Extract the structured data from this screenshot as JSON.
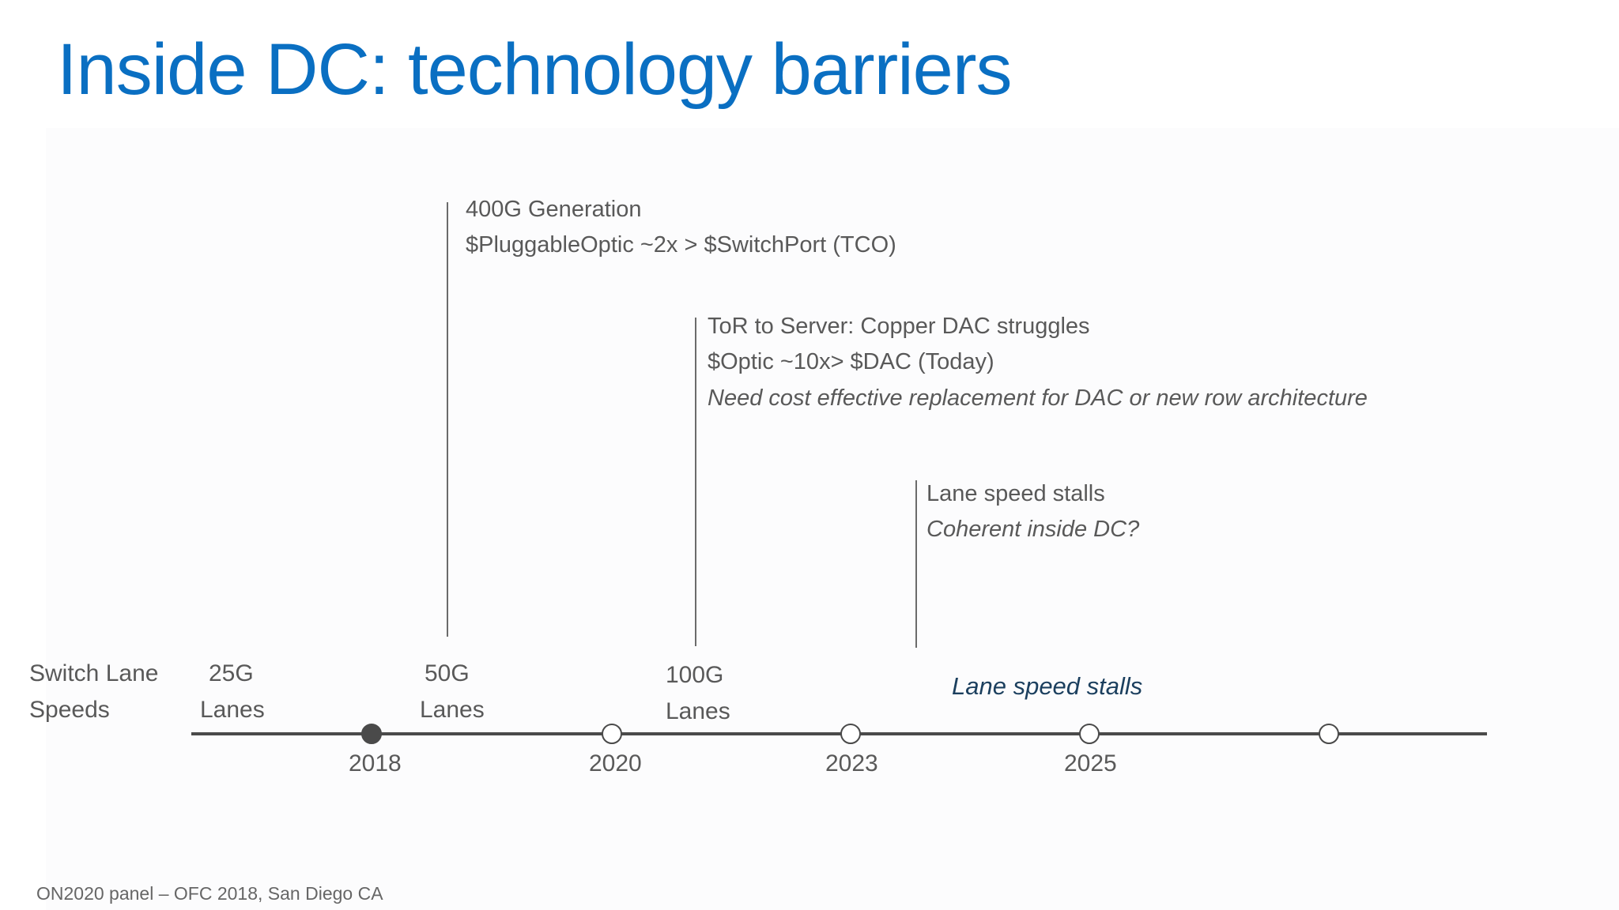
{
  "slide": {
    "title": "Inside DC: technology barriers",
    "footer": "ON2020 panel – OFC 2018, San Diego CA"
  },
  "callouts": [
    {
      "lines": [
        "400G Generation",
        "$PluggableOptic ~2x > $SwitchPort  (TCO)"
      ],
      "italic_lines": []
    },
    {
      "lines": [
        "ToR to Server: Copper DAC struggles",
        "$Optic  ~10x>  $DAC  (Today)"
      ],
      "italic_lines": [
        "Need cost effective replacement for DAC or new row architecture"
      ]
    },
    {
      "lines": [
        "Lane speed stalls"
      ],
      "italic_lines": [
        "Coherent inside DC?"
      ]
    }
  ],
  "timeline": {
    "row_label": [
      "Switch Lane",
      "Speeds"
    ],
    "lane_speeds": [
      {
        "speed": "25G",
        "unit": "Lanes"
      },
      {
        "speed": "50G",
        "unit": "Lanes"
      },
      {
        "speed": "100G",
        "unit": "Lanes"
      }
    ],
    "stall_label": "Lane speed stalls",
    "years": [
      "2018",
      "2020",
      "2023",
      "2025"
    ],
    "nodes": [
      {
        "year": "2018",
        "filled": true
      },
      {
        "year": "2020",
        "filled": false
      },
      {
        "year": "2023",
        "filled": false
      },
      {
        "year": "2025",
        "filled": false
      },
      {
        "year": "",
        "filled": false
      }
    ]
  },
  "colors": {
    "title": "#0a6fc2",
    "text": "#595959",
    "axis": "#4a4a4a",
    "stall_label": "#1b3f5e"
  }
}
